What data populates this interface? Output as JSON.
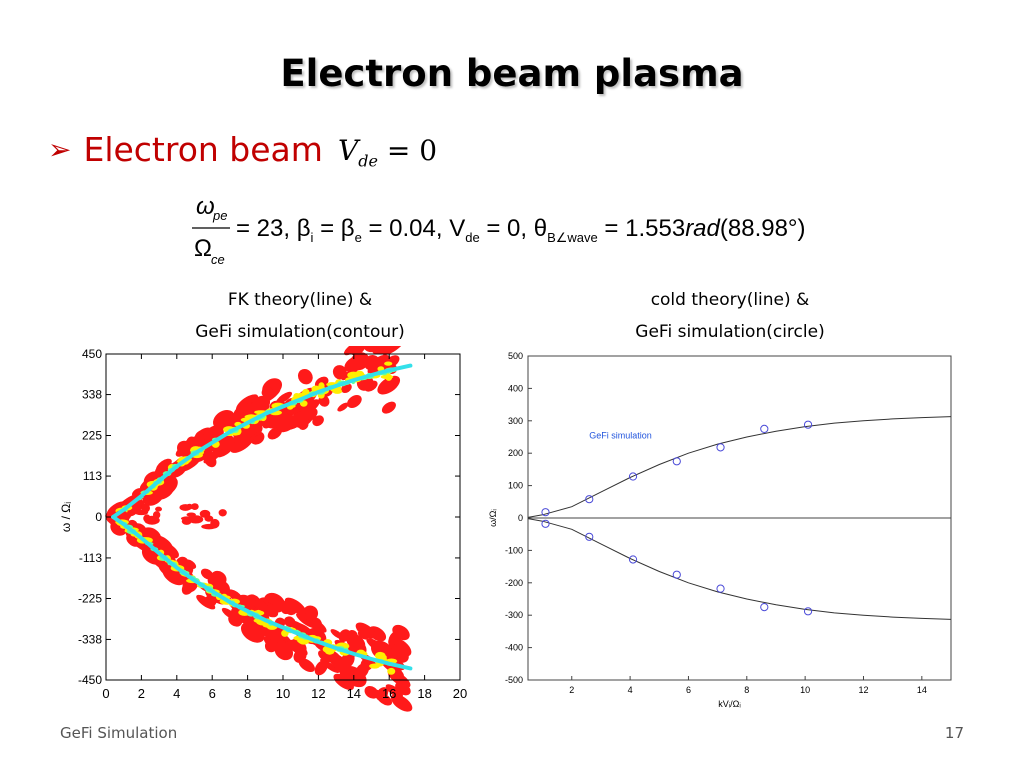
{
  "slide": {
    "title": "Electron beam plasma",
    "bullet_text": "Electron beam",
    "footer_left": "GeFi Simulation",
    "page_number": "17",
    "colors": {
      "title": "#000000",
      "bullet": "#c00000"
    }
  },
  "equations": {
    "vde_var": "V",
    "vde_sub": "de",
    "vde_rhs": "= 0",
    "frac_num": "ω",
    "frac_num_sub": "pe",
    "frac_den": "Ω",
    "frac_den_sub": "ce",
    "params": "= 23, β",
    "p_beta_i_sub": "i",
    "p_eq2": " = β",
    "p_beta_e_sub": "e",
    "p_eq3": " = 0.04, V",
    "p_vde_sub": "de",
    "p_eq4": " = 0, θ",
    "p_theta_sub": "B∠wave",
    "p_eq5": " = 1.553",
    "p_rad": "rad",
    "p_deg": "(88.98°)"
  },
  "captions": {
    "left_line1": "FK theory(line) &",
    "left_line2": "GeFi simulation(contour)",
    "right_line1": "cold theory(line) &",
    "right_line2": "GeFi simulation(circle)"
  },
  "chart_data": [
    {
      "type": "heatmap",
      "xlabel": "",
      "ylabel": "ω / Ωᵢ",
      "xlim": [
        0,
        20
      ],
      "ylim": [
        -450,
        450
      ],
      "x_ticks": [
        "0",
        "2",
        "4",
        "6",
        "8",
        "10",
        "12",
        "14",
        "16",
        "18",
        "20"
      ],
      "y_ticks": [
        "450",
        "338",
        "225",
        "113",
        "0",
        "-113",
        "-225",
        "-338",
        "-450"
      ],
      "theory_line": {
        "color": "#33e0ea",
        "x": [
          0.4,
          1,
          2,
          3,
          4,
          5,
          6,
          7,
          8,
          9,
          10,
          11,
          12,
          13,
          14,
          15,
          16,
          17.2
        ],
        "y_upper": [
          0,
          20,
          58,
          100,
          140,
          175,
          205,
          235,
          260,
          285,
          305,
          325,
          345,
          362,
          378,
          392,
          405,
          418
        ]
      },
      "contour_colors": [
        "#ff1a1a",
        "#ffee00",
        "#66ff99",
        "#33e0ea"
      ]
    },
    {
      "type": "scatter",
      "legend": "GeFi simulation",
      "xlabel": "kVᵢ/Ωᵢ",
      "ylabel": "ω/Ωᵢ",
      "xlim": [
        0.5,
        15
      ],
      "ylim": [
        -500,
        500
      ],
      "x_ticks": [
        2,
        4,
        6,
        8,
        10,
        12,
        14
      ],
      "y_ticks": [
        500,
        400,
        300,
        200,
        100,
        0,
        -100,
        -200,
        -300,
        -400,
        -500
      ],
      "points": {
        "x": [
          1.1,
          2.6,
          4.1,
          5.6,
          7.1,
          8.6,
          10.1
        ],
        "y_upper": [
          18,
          58,
          128,
          175,
          218,
          275,
          288
        ],
        "y_lower": [
          -18,
          -58,
          -128,
          -175,
          -218,
          -275,
          -288
        ]
      },
      "theory_line": {
        "x": [
          0.5,
          1,
          2,
          3,
          4,
          5,
          6,
          7,
          8,
          9,
          10,
          11,
          12,
          13,
          14,
          15
        ],
        "y_upper": [
          2,
          10,
          35,
          80,
          125,
          165,
          200,
          228,
          250,
          268,
          282,
          293,
          300,
          306,
          310,
          313
        ]
      },
      "colors": {
        "points": "#4a4ad8",
        "line": "#333333",
        "legend_text": "#2255dd"
      }
    }
  ]
}
